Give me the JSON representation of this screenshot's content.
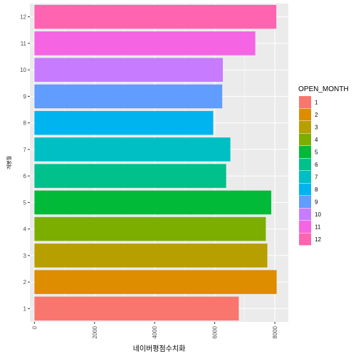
{
  "chart_data": {
    "type": "bar",
    "orientation": "horizontal",
    "xlabel": "네이버평점수치화",
    "ylabel": "개봉월",
    "xlim": [
      -150,
      8450
    ],
    "x_ticks": [
      0,
      2000,
      4000,
      6000,
      8000
    ],
    "x_tick_labels": [
      "0",
      "2000",
      "4000",
      "6000",
      "8000"
    ],
    "x_tick_rotation": "vertical",
    "grid": true,
    "categories": [
      "1",
      "2",
      "3",
      "4",
      "5",
      "6",
      "7",
      "8",
      "9",
      "10",
      "11",
      "12"
    ],
    "values": [
      6800,
      8060,
      7750,
      7700,
      7880,
      6380,
      6520,
      5950,
      6250,
      6270,
      7350,
      8050
    ],
    "colors": [
      "#F8766D",
      "#DE8C00",
      "#B79F00",
      "#7CAE00",
      "#00BA38",
      "#00C08B",
      "#00BFC4",
      "#00B4F0",
      "#619CFF",
      "#C77CFF",
      "#F564E3",
      "#FF64B0"
    ],
    "legend": {
      "title": "OPEN_MONTH",
      "position": "right",
      "labels": [
        "1",
        "2",
        "3",
        "4",
        "5",
        "6",
        "7",
        "8",
        "9",
        "10",
        "11",
        "12"
      ]
    },
    "panel_background": "#EBEBEB",
    "grid_color": "#FFFFFF"
  }
}
